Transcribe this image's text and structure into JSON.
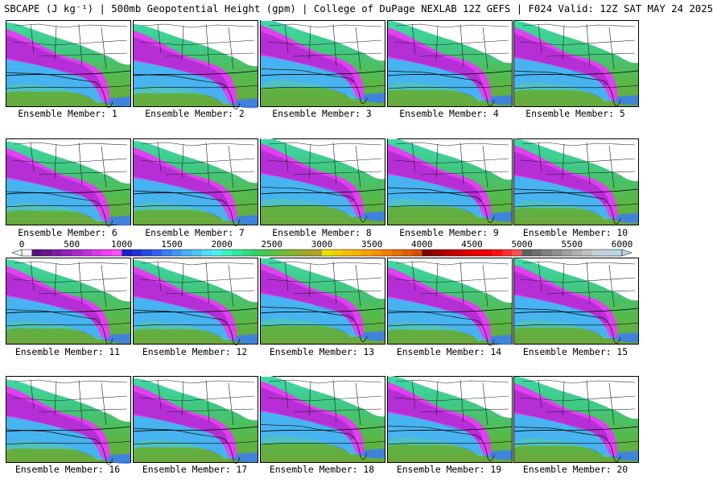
{
  "header": {
    "title": "SBCAPE (J kg⁻¹) | 500mb Geopotential Height (gpm) | College of DuPage NEXLAB 12Z GEFS | F024 Valid: 12Z SAT MAY 24 2025"
  },
  "panels": [
    {
      "label": "Ensemble Member: 1",
      "cape_extent": 0.5
    },
    {
      "label": "Ensemble Member: 2",
      "cape_extent": 0.45
    },
    {
      "label": "Ensemble Member: 3",
      "cape_extent": 0.62
    },
    {
      "label": "Ensemble Member: 4",
      "cape_extent": 0.55
    },
    {
      "label": "Ensemble Member: 5",
      "cape_extent": 0.55
    },
    {
      "label": "Ensemble Member: 6",
      "cape_extent": 0.48
    },
    {
      "label": "Ensemble Member: 7",
      "cape_extent": 0.5
    },
    {
      "label": "Ensemble Member: 8",
      "cape_extent": 0.62
    },
    {
      "label": "Ensemble Member: 9",
      "cape_extent": 0.6
    },
    {
      "label": "Ensemble Member: 10",
      "cape_extent": 0.56
    },
    {
      "label": "Ensemble Member: 11",
      "cape_extent": 0.52
    },
    {
      "label": "Ensemble Member: 12",
      "cape_extent": 0.5
    },
    {
      "label": "Ensemble Member: 13",
      "cape_extent": 0.6
    },
    {
      "label": "Ensemble Member: 14",
      "cape_extent": 0.48
    },
    {
      "label": "Ensemble Member: 15",
      "cape_extent": 0.55
    },
    {
      "label": "Ensemble Member: 16",
      "cape_extent": 0.46
    },
    {
      "label": "Ensemble Member: 17",
      "cape_extent": 0.5
    },
    {
      "label": "Ensemble Member: 18",
      "cape_extent": 0.62
    },
    {
      "label": "Ensemble Member: 19",
      "cape_extent": 0.58
    },
    {
      "label": "Ensemble Member: 20",
      "cape_extent": 0.55
    }
  ],
  "colorbar": {
    "ticks": [
      "0",
      "500",
      "1000",
      "1500",
      "2000",
      "2500",
      "3000",
      "3500",
      "4000",
      "4500",
      "5000",
      "5500",
      "6000"
    ],
    "colors": [
      "#f4f4f4",
      "#5a0f7a",
      "#6a1490",
      "#7e1aa4",
      "#9220b8",
      "#a828cc",
      "#c030dc",
      "#d838ea",
      "#f040f2",
      "#ff50ff",
      "#2020c0",
      "#2030d8",
      "#2848e8",
      "#3060f0",
      "#3a7cf4",
      "#4296f6",
      "#48b0f8",
      "#4cc6f8",
      "#50dcf6",
      "#50f0ec",
      "#3ef0c0",
      "#30e8a0",
      "#30dc80",
      "#38d064",
      "#48c850",
      "#60c040",
      "#78b838",
      "#8cb030",
      "#a0a828",
      "#b4a028",
      "#e8e000",
      "#f0d000",
      "#f4c000",
      "#f8b000",
      "#f8a000",
      "#f89000",
      "#f08000",
      "#e87000",
      "#e06000",
      "#d85000",
      "#800000",
      "#980000",
      "#b00000",
      "#c80000",
      "#d80000",
      "#e80000",
      "#f00000",
      "#ff1010",
      "#ff3030",
      "#ff5050",
      "#606060",
      "#707070",
      "#808080",
      "#909090",
      "#a0a0a0",
      "#b0b0b0",
      "#c0c0c0",
      "#c8d0d8",
      "#c0d4e0",
      "#b8d8e8"
    ]
  }
}
